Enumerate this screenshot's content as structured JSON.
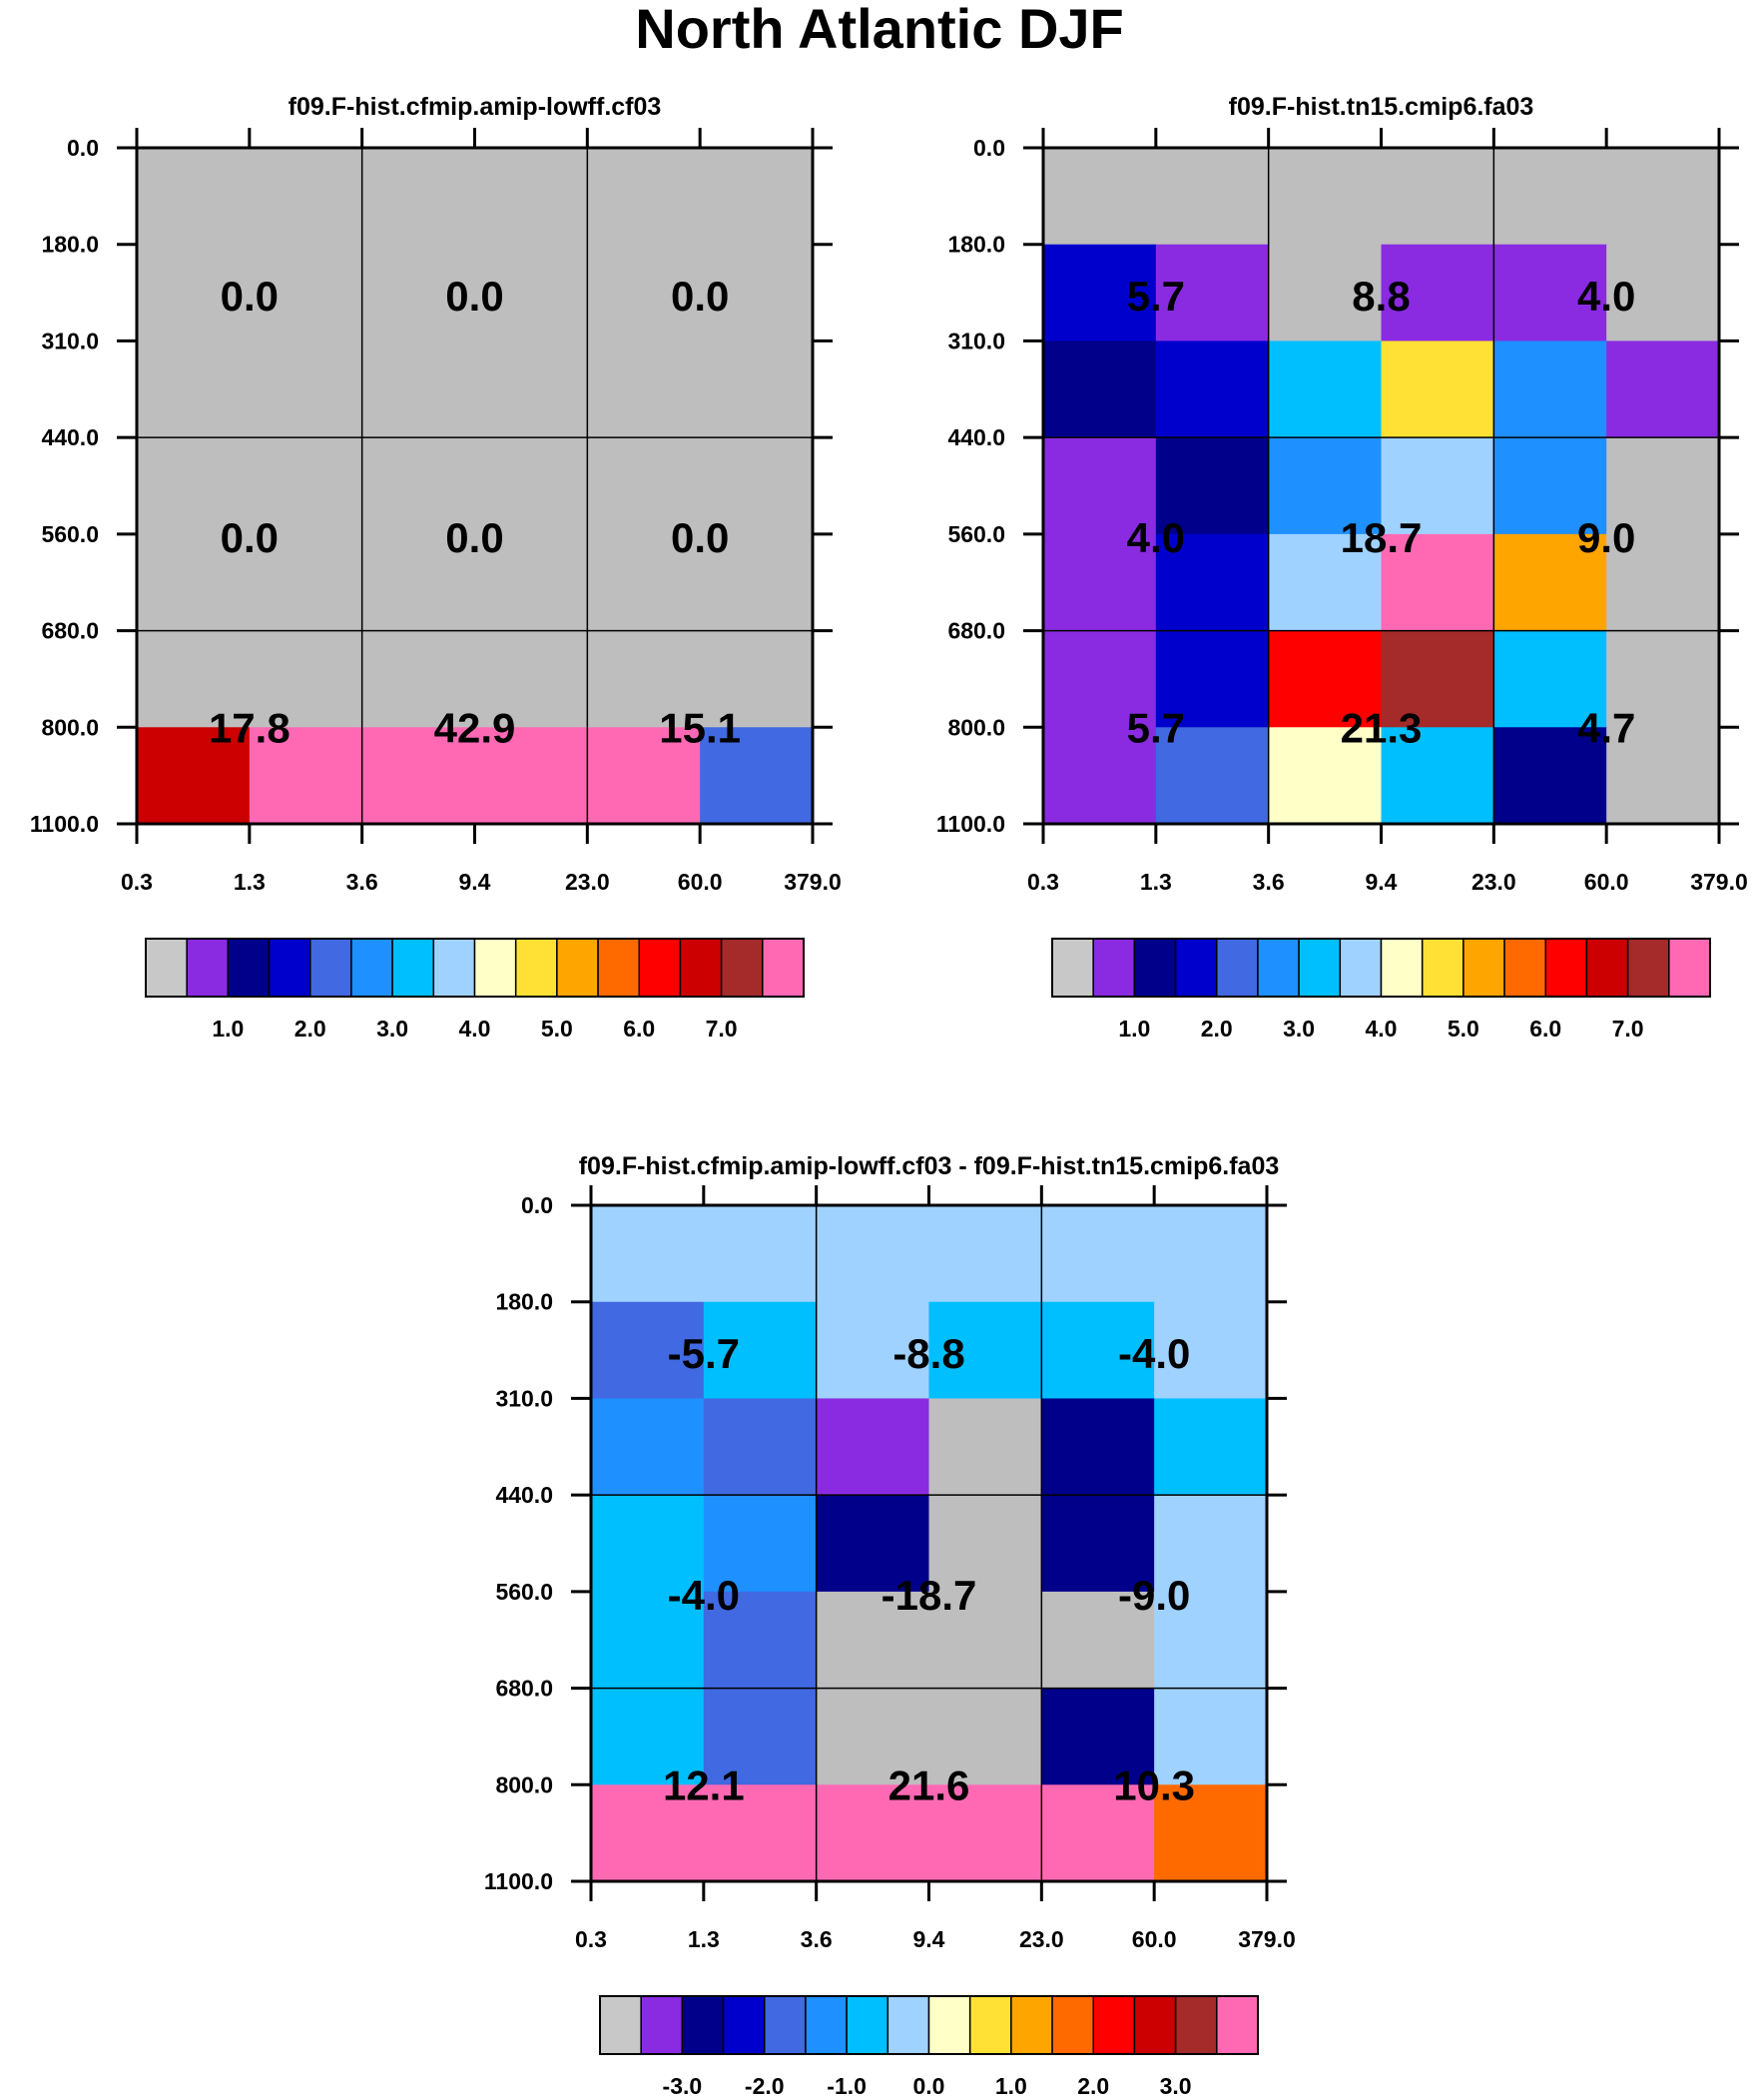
{
  "title": "North Atlantic DJF",
  "chart_data": [
    {
      "type": "heatmap",
      "title": "f09.F-hist.cfmip.amip-lowff.cf03",
      "x_tick_labels": [
        "0.3",
        "1.3",
        "3.6",
        "9.4",
        "23.0",
        "60.0",
        "379.0"
      ],
      "y_tick_labels": [
        "0.0",
        "180.0",
        "310.0",
        "440.0",
        "560.0",
        "680.0",
        "800.0",
        "1100.0"
      ],
      "grid_colors": [
        [
          "#BEBEBE",
          "#BEBEBE",
          "#BEBEBE",
          "#BEBEBE",
          "#BEBEBE",
          "#BEBEBE"
        ],
        [
          "#BEBEBE",
          "#BEBEBE",
          "#BEBEBE",
          "#BEBEBE",
          "#BEBEBE",
          "#BEBEBE"
        ],
        [
          "#BEBEBE",
          "#BEBEBE",
          "#BEBEBE",
          "#BEBEBE",
          "#BEBEBE",
          "#BEBEBE"
        ],
        [
          "#BEBEBE",
          "#BEBEBE",
          "#BEBEBE",
          "#BEBEBE",
          "#BEBEBE",
          "#BEBEBE"
        ],
        [
          "#BEBEBE",
          "#BEBEBE",
          "#BEBEBE",
          "#BEBEBE",
          "#BEBEBE",
          "#BEBEBE"
        ],
        [
          "#BEBEBE",
          "#BEBEBE",
          "#BEBEBE",
          "#BEBEBE",
          "#BEBEBE",
          "#BEBEBE"
        ],
        [
          "#CC0000",
          "#FF69B4",
          "#FF69B4",
          "#FF69B4",
          "#FF69B4",
          "#4169E1"
        ]
      ],
      "block_values": [
        [
          "0.0",
          "0.0",
          "0.0"
        ],
        [
          "0.0",
          "0.0",
          "0.0"
        ],
        [
          "17.8",
          "42.9",
          "15.1"
        ]
      ],
      "colorbar": {
        "colors": [
          "#C8C8C8",
          "#8A2BE2",
          "#00008B",
          "#0000CD",
          "#4169E1",
          "#1E90FF",
          "#00BFFF",
          "#A0D2FF",
          "#FFFFC8",
          "#FFE135",
          "#FFA500",
          "#FF6A00",
          "#FF0000",
          "#CC0000",
          "#A52A2A",
          "#FF69B4"
        ],
        "labels": [
          "1.0",
          "2.0",
          "3.0",
          "4.0",
          "5.0",
          "6.0",
          "7.0"
        ]
      }
    },
    {
      "type": "heatmap",
      "title": "f09.F-hist.tn15.cmip6.fa03",
      "x_tick_labels": [
        "0.3",
        "1.3",
        "3.6",
        "9.4",
        "23.0",
        "60.0",
        "379.0"
      ],
      "y_tick_labels": [
        "0.0",
        "180.0",
        "310.0",
        "440.0",
        "560.0",
        "680.0",
        "800.0",
        "1100.0"
      ],
      "grid_colors": [
        [
          "#BEBEBE",
          "#BEBEBE",
          "#BEBEBE",
          "#BEBEBE",
          "#BEBEBE",
          "#BEBEBE"
        ],
        [
          "#0000CD",
          "#8A2BE2",
          "#BEBEBE",
          "#8A2BE2",
          "#8A2BE2",
          "#BEBEBE"
        ],
        [
          "#00008B",
          "#0000CD",
          "#00BFFF",
          "#FFE135",
          "#1E90FF",
          "#8A2BE2"
        ],
        [
          "#8A2BE2",
          "#00008B",
          "#1E90FF",
          "#A0D2FF",
          "#1E90FF",
          "#BEBEBE"
        ],
        [
          "#8A2BE2",
          "#0000CD",
          "#A0D2FF",
          "#FF69B4",
          "#FFA500",
          "#BEBEBE"
        ],
        [
          "#8A2BE2",
          "#0000CD",
          "#FF0000",
          "#A52A2A",
          "#00BFFF",
          "#BEBEBE"
        ],
        [
          "#8A2BE2",
          "#4169E1",
          "#FFFFC8",
          "#00BFFF",
          "#00008B",
          "#BEBEBE"
        ]
      ],
      "block_values": [
        [
          "5.7",
          "8.8",
          "4.0"
        ],
        [
          "4.0",
          "18.7",
          "9.0"
        ],
        [
          "5.7",
          "21.3",
          "4.7"
        ]
      ],
      "colorbar": {
        "colors": [
          "#C8C8C8",
          "#8A2BE2",
          "#00008B",
          "#0000CD",
          "#4169E1",
          "#1E90FF",
          "#00BFFF",
          "#A0D2FF",
          "#FFFFC8",
          "#FFE135",
          "#FFA500",
          "#FF6A00",
          "#FF0000",
          "#CC0000",
          "#A52A2A",
          "#FF69B4"
        ],
        "labels": [
          "1.0",
          "2.0",
          "3.0",
          "4.0",
          "5.0",
          "6.0",
          "7.0"
        ]
      }
    },
    {
      "type": "heatmap",
      "title": "f09.F-hist.cfmip.amip-lowff.cf03 - f09.F-hist.tn15.cmip6.fa03",
      "x_tick_labels": [
        "0.3",
        "1.3",
        "3.6",
        "9.4",
        "23.0",
        "60.0",
        "379.0"
      ],
      "y_tick_labels": [
        "0.0",
        "180.0",
        "310.0",
        "440.0",
        "560.0",
        "680.0",
        "800.0",
        "1100.0"
      ],
      "grid_colors": [
        [
          "#A0D2FF",
          "#A0D2FF",
          "#A0D2FF",
          "#A0D2FF",
          "#A0D2FF",
          "#A0D2FF"
        ],
        [
          "#4169E1",
          "#00BFFF",
          "#A0D2FF",
          "#00BFFF",
          "#00BFFF",
          "#A0D2FF"
        ],
        [
          "#1E90FF",
          "#4169E1",
          "#8A2BE2",
          "#BEBEBE",
          "#00008B",
          "#00BFFF"
        ],
        [
          "#00BFFF",
          "#1E90FF",
          "#00008B",
          "#BEBEBE",
          "#00008B",
          "#A0D2FF"
        ],
        [
          "#00BFFF",
          "#4169E1",
          "#BEBEBE",
          "#BEBEBE",
          "#BEBEBE",
          "#A0D2FF"
        ],
        [
          "#00BFFF",
          "#4169E1",
          "#BEBEBE",
          "#BEBEBE",
          "#00008B",
          "#A0D2FF"
        ],
        [
          "#FF69B4",
          "#FF69B4",
          "#FF69B4",
          "#FF69B4",
          "#FF69B4",
          "#FF6A00"
        ]
      ],
      "block_values": [
        [
          "-5.7",
          "-8.8",
          "-4.0"
        ],
        [
          "-4.0",
          "-18.7",
          "-9.0"
        ],
        [
          "12.1",
          "21.6",
          "10.3"
        ]
      ],
      "colorbar": {
        "colors": [
          "#C8C8C8",
          "#8A2BE2",
          "#00008B",
          "#0000CD",
          "#4169E1",
          "#1E90FF",
          "#00BFFF",
          "#A0D2FF",
          "#FFFFC8",
          "#FFE135",
          "#FFA500",
          "#FF6A00",
          "#FF0000",
          "#CC0000",
          "#A52A2A",
          "#FF69B4"
        ],
        "labels": [
          "-3.0",
          "-2.0",
          "-1.0",
          "0.0",
          "1.0",
          "2.0",
          "3.0"
        ]
      }
    }
  ]
}
